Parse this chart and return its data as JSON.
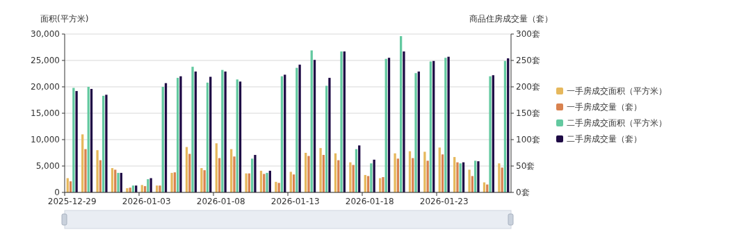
{
  "chart_data": {
    "type": "bar",
    "ylabel": "面积(平方米)",
    "y2label": "商品住房成交量（套）",
    "categories": [
      "2025-12-29",
      null,
      null,
      null,
      null,
      "2026-01-03",
      null,
      null,
      null,
      null,
      "2026-01-08",
      null,
      null,
      null,
      null,
      "2026-01-13",
      null,
      null,
      null,
      null,
      "2026-01-18",
      null,
      null,
      null,
      null,
      "2026-01-23",
      null,
      null,
      null,
      null
    ],
    "series": [
      {
        "name": "一手房成交面积（平方米）",
        "color": "#e6b85c",
        "values": [
          2700,
          11000,
          8000,
          4600,
          800,
          1400,
          1300,
          3700,
          8600,
          4600,
          9300,
          8200,
          3600,
          4100,
          2000,
          3900,
          7500,
          8400,
          7400,
          5700,
          3300,
          2700,
          7400,
          7800,
          7700,
          8500,
          6700,
          4300,
          1900,
          5500
        ]
      },
      {
        "name": "一手房成交量（套）",
        "color": "#d9824f",
        "axis": "y2",
        "values": [
          21,
          82,
          61,
          43,
          9,
          12,
          13,
          38,
          73,
          42,
          65,
          68,
          36,
          35,
          18,
          34,
          69,
          71,
          61,
          52,
          31,
          29,
          64,
          65,
          60,
          72,
          57,
          31,
          15,
          47
        ]
      },
      {
        "name": "二手房成交面积（平方米）",
        "color": "#63c9a0",
        "values": [
          19800,
          20000,
          18300,
          3700,
          1300,
          2500,
          20000,
          21700,
          23800,
          20800,
          23200,
          21400,
          6400,
          3700,
          22000,
          23600,
          26900,
          20200,
          26700,
          8200,
          5500,
          25300,
          29600,
          22600,
          24800,
          25500,
          5500,
          6000,
          22000,
          24900
        ]
      },
      {
        "name": "二手房成交量（套）",
        "color": "#1e0a45",
        "axis": "y2",
        "values": [
          192,
          196,
          185,
          37,
          13,
          27,
          207,
          220,
          229,
          219,
          229,
          210,
          71,
          41,
          223,
          242,
          251,
          217,
          267,
          89,
          62,
          255,
          267,
          229,
          249,
          257,
          57,
          59,
          222,
          254
        ]
      }
    ],
    "ylim": [
      0,
      30000
    ],
    "yticks": [
      0,
      {
        "value": 5000,
        "label": "5,000"
      },
      {
        "value": 10000,
        "label": "10,000"
      },
      {
        "value": 15000,
        "label": "15,000"
      },
      {
        "value": 20000,
        "label": "20,000"
      },
      {
        "value": 25000,
        "label": "25,000"
      },
      {
        "value": 30000,
        "label": "30,000"
      }
    ],
    "y2lim": [
      0,
      300
    ],
    "y2ticks": [
      {
        "value": 0,
        "label": "0套"
      },
      {
        "value": 50,
        "label": "50套"
      },
      {
        "value": 100,
        "label": "100套"
      },
      {
        "value": 150,
        "label": "150套"
      },
      {
        "value": 200,
        "label": "200套"
      },
      {
        "value": 250,
        "label": "250套"
      },
      {
        "value": 300,
        "label": "300套"
      }
    ],
    "grid": "y",
    "legend": "right"
  }
}
